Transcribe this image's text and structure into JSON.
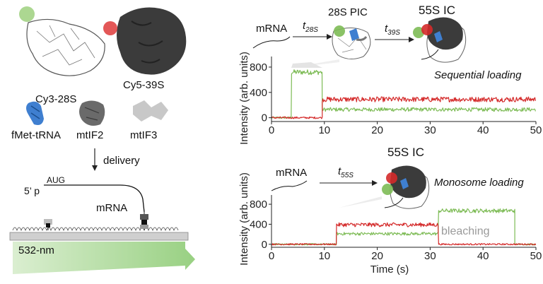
{
  "components": {
    "cy3_28s": "Cy3-28S",
    "cy5_39s": "Cy5-39S",
    "fmet_trna": "fMet-tRNA",
    "mtif2": "mtIF2",
    "mtif3": "mtIF3",
    "delivery": "delivery",
    "five_prime": "5’ p",
    "aug": "AUG",
    "mrna": "mRNA",
    "laser": "532-nm"
  },
  "top_scheme": {
    "mrna": "mRNA",
    "t1": "t",
    "t1_sub": "28S",
    "state1": "28S PIC",
    "t2": "t",
    "t2_sub": "39S",
    "state2": "55S IC",
    "panel_title": "Sequential loading"
  },
  "bottom_scheme": {
    "mrna": "mRNA",
    "t1": "t",
    "t1_sub": "55S",
    "state1": "55S IC",
    "panel_title": "Monosome loading",
    "annotation": "bleaching"
  },
  "colors": {
    "cy3": "#7dbb55",
    "cy5": "#d42a2a",
    "trna": "#3f7fd0",
    "ribosome_dark": "#3b3b3b",
    "laser": "#9fd28a"
  },
  "chart_data": [
    {
      "type": "line",
      "title": "Sequential loading",
      "xlabel": "",
      "ylabel": "Intensity (arb. units)",
      "xlim": [
        0,
        50
      ],
      "ylim": [
        -60,
        900
      ],
      "xticks": [
        0,
        10,
        20,
        30,
        40,
        50
      ],
      "yticks": [
        0,
        400,
        800
      ],
      "series": [
        {
          "color": "#7dbb55",
          "segments": [
            {
              "x": [
                0,
                3.8
              ],
              "level": 0,
              "noise": 15
            },
            {
              "x": [
                3.8,
                9.6
              ],
              "level": 720,
              "noise": 40
            },
            {
              "x": [
                9.6,
                50
              ],
              "level": 130,
              "noise": 30
            }
          ]
        },
        {
          "color": "#d42a2a",
          "segments": [
            {
              "x": [
                0,
                9.6
              ],
              "level": 0,
              "noise": 15
            },
            {
              "x": [
                9.6,
                50
              ],
              "level": 290,
              "noise": 40
            }
          ]
        }
      ]
    },
    {
      "type": "line",
      "title": "Monosome loading",
      "xlabel": "Time (s)",
      "ylabel": "Intensity (arb. units)",
      "xlim": [
        0,
        50
      ],
      "ylim": [
        -60,
        900
      ],
      "xticks": [
        0,
        10,
        20,
        30,
        40,
        50
      ],
      "yticks": [
        0,
        400,
        800
      ],
      "series": [
        {
          "color": "#7dbb55",
          "segments": [
            {
              "x": [
                0,
                12.3
              ],
              "level": 0,
              "noise": 15
            },
            {
              "x": [
                12.3,
                31.6
              ],
              "level": 210,
              "noise": 30
            },
            {
              "x": [
                31.6,
                46
              ],
              "level": 670,
              "noise": 40
            },
            {
              "x": [
                46,
                50
              ],
              "level": 0,
              "noise": 15
            }
          ]
        },
        {
          "color": "#d42a2a",
          "segments": [
            {
              "x": [
                0,
                12.3
              ],
              "level": 0,
              "noise": 15
            },
            {
              "x": [
                12.3,
                31.6
              ],
              "level": 390,
              "noise": 40
            },
            {
              "x": [
                31.6,
                50
              ],
              "level": 0,
              "noise": 15
            }
          ]
        }
      ]
    }
  ]
}
